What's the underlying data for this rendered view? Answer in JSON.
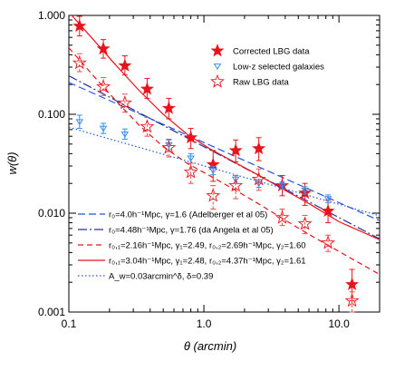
{
  "chart_data": {
    "type": "scatter",
    "xlabel": "θ (arcmin)",
    "ylabel": "w(θ)",
    "xscale": "log",
    "yscale": "log",
    "xlim": [
      0.1,
      20
    ],
    "ylim": [
      0.001,
      1.0
    ],
    "x_ticks": [
      0.1,
      1.0,
      10.0
    ],
    "x_tick_labels": [
      "0.1",
      "1.0",
      "10.0"
    ],
    "y_ticks": [
      0.001,
      0.01,
      0.1,
      1.0
    ],
    "y_tick_labels": [
      "0.001",
      "0.010",
      "0.100",
      "1.000"
    ],
    "grid": false,
    "legend_top_position": "top-right",
    "legend_bottom_position": "bottom-left",
    "colors": {
      "red": "#e8141b",
      "blue": "#2255dd",
      "lightblue": "#3a8ee8",
      "navy": "#2a2f9a",
      "errorred": "#e85050"
    },
    "series": [
      {
        "name": "Corrected LBG data",
        "kind": "points",
        "marker": "filled-star",
        "color": "#e8141b",
        "x": [
          0.12,
          0.18,
          0.26,
          0.38,
          0.55,
          0.8,
          1.17,
          1.72,
          2.55,
          3.8,
          5.6,
          8.3,
          12.5
        ],
        "y": [
          0.78,
          0.46,
          0.31,
          0.18,
          0.115,
          0.058,
          0.031,
          0.043,
          0.045,
          0.019,
          0.016,
          0.0105,
          0.0019
        ],
        "ylow": [
          0.62,
          0.37,
          0.25,
          0.145,
          0.09,
          0.045,
          0.021,
          0.033,
          0.034,
          0.015,
          0.012,
          0.008,
          0.0013
        ],
        "yhigh": [
          0.98,
          0.57,
          0.39,
          0.23,
          0.145,
          0.072,
          0.043,
          0.055,
          0.058,
          0.024,
          0.02,
          0.0135,
          0.0027
        ]
      },
      {
        "name": "Low-z selected galaxies",
        "kind": "points",
        "marker": "open-triangle-down",
        "color": "#3a8ee8",
        "x": [
          0.12,
          0.18,
          0.26,
          0.55,
          0.8,
          1.17,
          1.72,
          2.55,
          3.8,
          5.6,
          8.3
        ],
        "y": [
          0.084,
          0.072,
          0.063,
          0.049,
          0.036,
          0.027,
          0.022,
          0.02,
          0.019,
          0.017,
          0.014
        ],
        "ylow": [
          0.072,
          0.064,
          0.056,
          0.044,
          0.032,
          0.0245,
          0.02,
          0.0182,
          0.0175,
          0.0156,
          0.0128
        ],
        "yhigh": [
          0.098,
          0.081,
          0.071,
          0.055,
          0.04,
          0.0298,
          0.024,
          0.0219,
          0.0206,
          0.0185,
          0.0153
        ]
      },
      {
        "name": "Raw LBG data",
        "kind": "points",
        "marker": "open-star",
        "color": "#e8141b",
        "x": [
          0.12,
          0.18,
          0.26,
          0.38,
          0.55,
          0.8,
          1.17,
          1.72,
          2.55,
          3.8,
          5.6,
          8.3,
          12.5
        ],
        "y": [
          0.33,
          0.19,
          0.13,
          0.075,
          0.046,
          0.026,
          0.015,
          0.019,
          0.022,
          0.009,
          0.0078,
          0.005,
          0.0013
        ],
        "ylow": [
          0.27,
          0.155,
          0.105,
          0.06,
          0.037,
          0.02,
          0.011,
          0.014,
          0.017,
          0.0075,
          0.0062,
          0.0041,
          0.001
        ],
        "yhigh": [
          0.41,
          0.235,
          0.16,
          0.093,
          0.056,
          0.032,
          0.019,
          0.024,
          0.028,
          0.011,
          0.0095,
          0.006,
          0.0016
        ]
      },
      {
        "name": "r₀=4.0h⁻¹Mpc, γ=1.6 (Adelberger et al 05)",
        "kind": "line",
        "dash": "8,4",
        "color": "#2255dd",
        "x": [
          0.1,
          20
        ],
        "y": [
          0.21,
          0.0084
        ]
      },
      {
        "name": "r₀=4.48h⁻¹Mpc, γ=1.76 (da Angela et al 05)",
        "kind": "line",
        "dash": "10,3,2,3",
        "color": "#2a2f9a",
        "x": [
          0.1,
          20
        ],
        "y": [
          0.245,
          0.0055
        ]
      },
      {
        "name": "r₀,₁=2.16h⁻¹Mpc, γ₁=2.49, r₀,₂=2.69h⁻¹Mpc, γ₂=1.60",
        "kind": "line",
        "dash": "6,4",
        "color": "#e8141b",
        "x": [
          0.1,
          0.15,
          0.22,
          0.33,
          0.5,
          0.75,
          1.1,
          1.6,
          2.5,
          4.0,
          6.0,
          10.0,
          20.0
        ],
        "y": [
          0.47,
          0.25,
          0.14,
          0.078,
          0.047,
          0.032,
          0.024,
          0.018,
          0.0126,
          0.0085,
          0.0061,
          0.0041,
          0.0024
        ]
      },
      {
        "name": "r₀,₁=3.04h⁻¹Mpc, γ₁=2.48, r₀,₂=4.37h⁻¹Mpc, γ₂=1.61",
        "kind": "line",
        "dash": "",
        "color": "#e8141b",
        "x": [
          0.1,
          0.15,
          0.22,
          0.33,
          0.5,
          0.75,
          1.1,
          1.6,
          2.5,
          4.0,
          6.0,
          10.0,
          20.0
        ],
        "y": [
          1.08,
          0.58,
          0.32,
          0.175,
          0.1,
          0.063,
          0.045,
          0.034,
          0.0245,
          0.017,
          0.0125,
          0.0082,
          0.0054
        ]
      },
      {
        "name": "A_w=0.03arcmin^δ, δ=0.39",
        "kind": "line",
        "dash": "1.5,2.5",
        "color": "#2255dd",
        "x": [
          0.1,
          20
        ],
        "y": [
          0.0738,
          0.0094
        ]
      }
    ]
  }
}
